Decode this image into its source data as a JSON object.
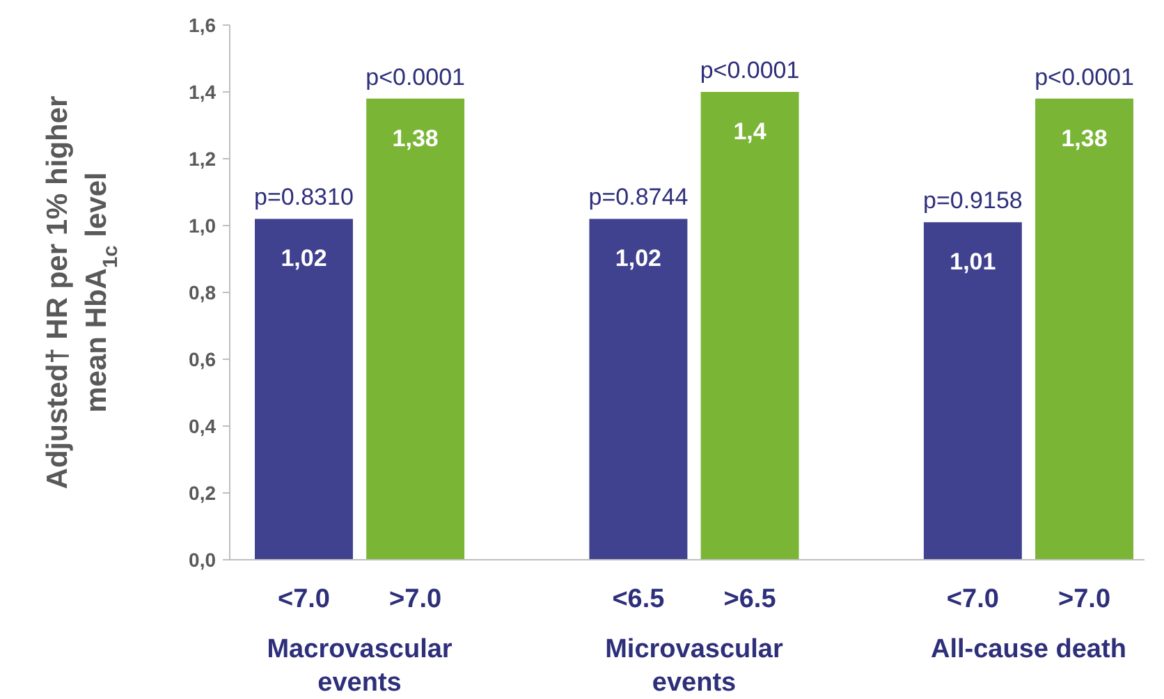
{
  "chart_data": {
    "type": "bar",
    "ylabel": "Adjusted† HR per 1% higher\nmean HbA$_{1c}$ level",
    "categories": [
      "<7.0",
      ">7.0",
      null,
      "<6.5",
      ">6.5",
      null,
      "<7.0",
      ">7.0"
    ],
    "values": [
      1.02,
      1.38,
      null,
      1.02,
      1.4,
      null,
      1.01,
      1.38
    ],
    "colors": [
      "#41428f",
      "#7ab536",
      null,
      "#41428f",
      "#7ab536",
      null,
      "#41428f",
      "#7ab536"
    ],
    "value_labels": [
      "1,02",
      "1,38",
      null,
      "1,02",
      "1,4",
      null,
      "1,01",
      "1,38"
    ],
    "ylim": [
      0,
      1.6
    ],
    "yticks": [
      {
        "value": 0,
        "label": "0,0"
      },
      {
        "value": 0.2,
        "label": "0,2"
      },
      {
        "value": 0.4,
        "label": "0,4"
      },
      {
        "value": 0.6,
        "label": "0,6"
      },
      {
        "value": 0.8,
        "label": "0,8"
      },
      {
        "value": 1.0,
        "label": "1,0"
      },
      {
        "value": 1.2,
        "label": "1,2"
      },
      {
        "value": 1.4,
        "label": "1,4"
      },
      {
        "value": 1.6,
        "label": "1,6"
      }
    ],
    "grid": false,
    "annotations": [
      "p=0.8310",
      "p<0.0001",
      "p=0.8744",
      "p<0.0001",
      "p=0.9158",
      "p<0.0001",
      "Macrovascular events",
      "Microvascular events",
      "All-cause death"
    ]
  }
}
